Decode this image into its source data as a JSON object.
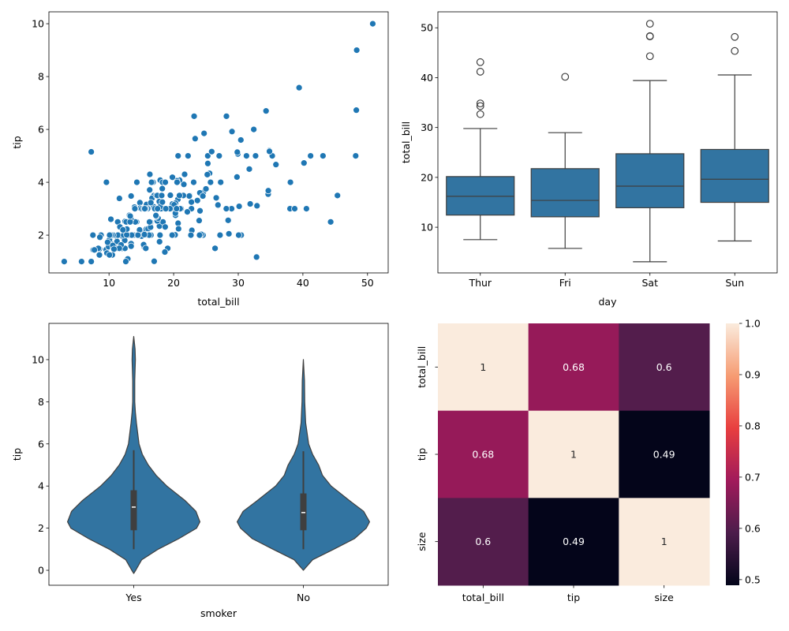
{
  "colors": {
    "scatter": "#1f77b4",
    "box_fill": "#3274a1",
    "line": "#3f3f3f",
    "rocket": [
      "#03051a",
      "#4c1d4b",
      "#a11a5b",
      "#e83f3f",
      "#f69c73",
      "#faebdd"
    ]
  },
  "chart_data": [
    {
      "type": "scatter",
      "xlabel": "total_bill",
      "ylabel": "tip",
      "xlim": [
        0.7,
        53.2
      ],
      "ylim": [
        0.57,
        10.45
      ],
      "xticks": [
        10,
        20,
        30,
        40,
        50
      ],
      "yticks": [
        2,
        4,
        6,
        8,
        10
      ],
      "points": [
        [
          16.99,
          1.01
        ],
        [
          10.34,
          1.66
        ],
        [
          21.01,
          3.5
        ],
        [
          23.68,
          3.31
        ],
        [
          24.59,
          3.61
        ],
        [
          25.29,
          4.71
        ],
        [
          8.77,
          2.0
        ],
        [
          26.88,
          3.12
        ],
        [
          15.04,
          1.96
        ],
        [
          14.78,
          3.23
        ],
        [
          10.27,
          1.71
        ],
        [
          35.26,
          5.0
        ],
        [
          15.42,
          1.57
        ],
        [
          18.43,
          3.0
        ],
        [
          14.83,
          3.02
        ],
        [
          21.58,
          3.92
        ],
        [
          10.33,
          1.67
        ],
        [
          16.29,
          3.71
        ],
        [
          16.97,
          3.5
        ],
        [
          20.65,
          3.35
        ],
        [
          17.92,
          4.08
        ],
        [
          20.29,
          2.75
        ],
        [
          15.77,
          2.23
        ],
        [
          39.42,
          7.58
        ],
        [
          19.82,
          3.18
        ],
        [
          17.81,
          2.34
        ],
        [
          13.37,
          2.0
        ],
        [
          12.69,
          2.0
        ],
        [
          21.7,
          4.3
        ],
        [
          19.65,
          3.0
        ],
        [
          9.55,
          1.45
        ],
        [
          18.35,
          2.5
        ],
        [
          15.06,
          3.0
        ],
        [
          20.69,
          2.45
        ],
        [
          17.78,
          3.27
        ],
        [
          24.06,
          3.6
        ],
        [
          16.31,
          2.0
        ],
        [
          16.93,
          3.07
        ],
        [
          18.69,
          2.31
        ],
        [
          31.27,
          5.0
        ],
        [
          16.04,
          2.24
        ],
        [
          17.46,
          2.54
        ],
        [
          13.94,
          3.06
        ],
        [
          9.68,
          1.32
        ],
        [
          30.4,
          5.6
        ],
        [
          18.29,
          3.0
        ],
        [
          22.23,
          5.0
        ],
        [
          32.4,
          6.0
        ],
        [
          28.55,
          2.05
        ],
        [
          18.04,
          3.0
        ],
        [
          12.54,
          2.5
        ],
        [
          10.29,
          2.6
        ],
        [
          34.81,
          5.2
        ],
        [
          9.94,
          1.56
        ],
        [
          25.56,
          4.34
        ],
        [
          19.49,
          3.51
        ],
        [
          38.01,
          3.0
        ],
        [
          26.41,
          1.5
        ],
        [
          11.24,
          1.76
        ],
        [
          48.27,
          6.73
        ],
        [
          20.29,
          3.21
        ],
        [
          13.81,
          2.0
        ],
        [
          11.02,
          1.98
        ],
        [
          18.29,
          3.76
        ],
        [
          17.59,
          2.64
        ],
        [
          20.08,
          3.15
        ],
        [
          16.45,
          2.47
        ],
        [
          3.07,
          1.0
        ],
        [
          20.23,
          2.01
        ],
        [
          15.01,
          2.09
        ],
        [
          12.02,
          1.97
        ],
        [
          17.07,
          3.0
        ],
        [
          26.86,
          3.14
        ],
        [
          25.28,
          5.0
        ],
        [
          14.73,
          2.2
        ],
        [
          10.51,
          1.25
        ],
        [
          17.92,
          3.08
        ],
        [
          27.2,
          4.0
        ],
        [
          22.76,
          3.0
        ],
        [
          17.29,
          2.71
        ],
        [
          19.44,
          3.0
        ],
        [
          16.66,
          3.4
        ],
        [
          10.07,
          1.83
        ],
        [
          32.68,
          5.0
        ],
        [
          15.98,
          2.03
        ],
        [
          34.83,
          5.17
        ],
        [
          13.03,
          2.0
        ],
        [
          18.28,
          4.0
        ],
        [
          24.71,
          5.85
        ],
        [
          21.16,
          3.0
        ],
        [
          28.97,
          3.0
        ],
        [
          22.49,
          3.5
        ],
        [
          5.75,
          1.0
        ],
        [
          16.32,
          4.3
        ],
        [
          22.75,
          3.25
        ],
        [
          40.17,
          4.73
        ],
        [
          27.28,
          4.0
        ],
        [
          12.03,
          1.5
        ],
        [
          21.01,
          3.0
        ],
        [
          12.46,
          1.5
        ],
        [
          11.35,
          2.5
        ],
        [
          15.38,
          3.0
        ],
        [
          44.3,
          2.5
        ],
        [
          22.42,
          3.48
        ],
        [
          20.92,
          4.08
        ],
        [
          15.36,
          1.64
        ],
        [
          20.49,
          4.06
        ],
        [
          25.21,
          4.29
        ],
        [
          18.24,
          3.76
        ],
        [
          14.31,
          4.0
        ],
        [
          14.0,
          3.0
        ],
        [
          7.25,
          1.0
        ],
        [
          38.07,
          4.0
        ],
        [
          23.95,
          2.55
        ],
        [
          25.71,
          4.0
        ],
        [
          17.31,
          3.5
        ],
        [
          29.93,
          5.07
        ],
        [
          10.65,
          1.5
        ],
        [
          12.43,
          1.8
        ],
        [
          24.08,
          2.92
        ],
        [
          11.69,
          2.31
        ],
        [
          13.42,
          1.68
        ],
        [
          14.26,
          2.5
        ],
        [
          15.95,
          2.0
        ],
        [
          12.48,
          2.52
        ],
        [
          29.8,
          4.2
        ],
        [
          8.52,
          1.48
        ],
        [
          14.52,
          2.0
        ],
        [
          11.38,
          2.0
        ],
        [
          22.82,
          2.18
        ],
        [
          19.08,
          1.5
        ],
        [
          20.27,
          2.83
        ],
        [
          11.17,
          1.5
        ],
        [
          12.26,
          2.0
        ],
        [
          18.26,
          3.25
        ],
        [
          8.51,
          1.25
        ],
        [
          10.33,
          2.0
        ],
        [
          14.15,
          2.0
        ],
        [
          16.0,
          2.0
        ],
        [
          13.16,
          2.75
        ],
        [
          17.47,
          3.5
        ],
        [
          34.3,
          6.7
        ],
        [
          41.19,
          5.0
        ],
        [
          27.05,
          5.0
        ],
        [
          16.43,
          2.3
        ],
        [
          8.35,
          1.5
        ],
        [
          18.64,
          1.36
        ],
        [
          11.87,
          1.63
        ],
        [
          9.78,
          1.73
        ],
        [
          7.51,
          2.0
        ],
        [
          14.07,
          2.5
        ],
        [
          13.13,
          2.0
        ],
        [
          17.26,
          2.74
        ],
        [
          24.55,
          2.0
        ],
        [
          19.77,
          2.0
        ],
        [
          29.85,
          5.14
        ],
        [
          48.17,
          5.0
        ],
        [
          25.0,
          3.75
        ],
        [
          13.39,
          2.61
        ],
        [
          16.49,
          2.0
        ],
        [
          21.5,
          3.5
        ],
        [
          12.66,
          2.5
        ],
        [
          16.21,
          2.0
        ],
        [
          13.81,
          2.0
        ],
        [
          17.51,
          3.0
        ],
        [
          24.52,
          3.48
        ],
        [
          20.76,
          2.24
        ],
        [
          31.71,
          4.5
        ],
        [
          10.59,
          1.61
        ],
        [
          10.63,
          2.0
        ],
        [
          50.81,
          10.0
        ],
        [
          15.81,
          3.16
        ],
        [
          7.25,
          5.15
        ],
        [
          31.85,
          3.18
        ],
        [
          16.82,
          4.0
        ],
        [
          32.9,
          3.11
        ],
        [
          17.89,
          2.0
        ],
        [
          14.48,
          2.0
        ],
        [
          9.6,
          4.0
        ],
        [
          34.63,
          3.55
        ],
        [
          34.65,
          3.68
        ],
        [
          23.33,
          5.65
        ],
        [
          45.35,
          3.5
        ],
        [
          23.17,
          6.5
        ],
        [
          40.55,
          3.0
        ],
        [
          20.69,
          5.0
        ],
        [
          20.9,
          3.5
        ],
        [
          30.46,
          2.0
        ],
        [
          18.15,
          3.5
        ],
        [
          23.1,
          4.0
        ],
        [
          15.69,
          1.5
        ],
        [
          19.81,
          4.19
        ],
        [
          28.44,
          2.56
        ],
        [
          15.48,
          2.02
        ],
        [
          16.58,
          4.0
        ],
        [
          7.56,
          1.44
        ],
        [
          10.34,
          2.0
        ],
        [
          43.11,
          5.0
        ],
        [
          13.0,
          2.0
        ],
        [
          13.51,
          2.0
        ],
        [
          18.71,
          4.0
        ],
        [
          12.74,
          2.01
        ],
        [
          16.4,
          2.5
        ],
        [
          20.53,
          4.0
        ],
        [
          16.47,
          3.23
        ],
        [
          26.59,
          3.41
        ],
        [
          38.73,
          3.0
        ],
        [
          24.27,
          2.03
        ],
        [
          12.76,
          2.23
        ],
        [
          30.06,
          2.0
        ],
        [
          25.89,
          5.16
        ],
        [
          48.33,
          9.0
        ],
        [
          13.27,
          2.5
        ],
        [
          28.17,
          6.5
        ],
        [
          12.9,
          1.1
        ],
        [
          28.15,
          3.0
        ],
        [
          11.59,
          1.5
        ],
        [
          7.74,
          1.44
        ],
        [
          30.14,
          3.09
        ],
        [
          12.16,
          2.2
        ],
        [
          13.42,
          3.48
        ],
        [
          8.58,
          1.92
        ],
        [
          15.98,
          3.0
        ],
        [
          13.42,
          1.58
        ],
        [
          16.27,
          2.5
        ],
        [
          10.09,
          2.0
        ],
        [
          20.45,
          3.0
        ],
        [
          13.28,
          2.72
        ],
        [
          22.12,
          2.88
        ],
        [
          24.01,
          2.0
        ],
        [
          15.69,
          3.0
        ],
        [
          11.61,
          3.39
        ],
        [
          10.77,
          1.47
        ],
        [
          15.53,
          3.0
        ],
        [
          10.07,
          1.25
        ],
        [
          12.6,
          1.0
        ],
        [
          32.83,
          1.17
        ],
        [
          35.83,
          4.67
        ],
        [
          29.03,
          5.92
        ],
        [
          27.18,
          2.0
        ],
        [
          22.67,
          2.0
        ],
        [
          17.82,
          1.75
        ],
        [
          18.78,
          3.0
        ]
      ]
    },
    {
      "type": "box",
      "xlabel": "day",
      "ylabel": "total_bill",
      "ylim": [
        0.84,
        53.2
      ],
      "yticks": [
        10,
        20,
        30,
        40,
        50
      ],
      "categories": [
        "Thur",
        "Fri",
        "Sat",
        "Sun"
      ],
      "boxes": [
        {
          "whislo": 7.51,
          "q1": 12.44,
          "median": 16.2,
          "q3": 20.16,
          "whishi": 29.8,
          "outliers": [
            32.68,
            34.3,
            34.83,
            41.19,
            43.11
          ]
        },
        {
          "whislo": 5.75,
          "q1": 12.09,
          "median": 15.38,
          "q3": 21.75,
          "whishi": 28.97,
          "outliers": [
            40.17
          ]
        },
        {
          "whislo": 3.07,
          "q1": 13.91,
          "median": 18.24,
          "q3": 24.74,
          "whishi": 39.42,
          "outliers": [
            44.3,
            48.27,
            48.33,
            50.81
          ]
        },
        {
          "whislo": 7.25,
          "q1": 14.99,
          "median": 19.63,
          "q3": 25.6,
          "whishi": 40.55,
          "outliers": [
            45.35,
            48.17
          ]
        }
      ]
    },
    {
      "type": "violin",
      "xlabel": "smoker",
      "ylabel": "tip",
      "ylim": [
        -0.71,
        11.72
      ],
      "yticks": [
        0,
        2,
        4,
        6,
        8,
        10
      ],
      "categories": [
        "Yes",
        "No"
      ],
      "violins": [
        {
          "density": [
            [
              -0.15,
              0
            ],
            [
              0,
              0.03
            ],
            [
              0.5,
              0.12
            ],
            [
              1,
              0.37
            ],
            [
              1.5,
              0.68
            ],
            [
              2,
              0.95
            ],
            [
              2.3,
              1.0
            ],
            [
              2.8,
              0.94
            ],
            [
              3.3,
              0.78
            ],
            [
              4,
              0.5
            ],
            [
              4.5,
              0.34
            ],
            [
              5,
              0.22
            ],
            [
              5.5,
              0.13
            ],
            [
              6,
              0.08
            ],
            [
              7,
              0.04
            ],
            [
              7.5,
              0.025
            ],
            [
              8,
              0.015
            ],
            [
              9,
              0.015
            ],
            [
              10,
              0.025
            ],
            [
              10.5,
              0.02
            ],
            [
              11.1,
              0
            ]
          ],
          "whislo": 1.0,
          "q1": 1.9,
          "median": 3.0,
          "q3": 3.8,
          "whishi": 5.7
        },
        {
          "density": [
            [
              0,
              0
            ],
            [
              0.5,
              0.14
            ],
            [
              1,
              0.46
            ],
            [
              1.5,
              0.77
            ],
            [
              2,
              0.95
            ],
            [
              2.3,
              1.0
            ],
            [
              2.8,
              0.91
            ],
            [
              3.3,
              0.7
            ],
            [
              4,
              0.42
            ],
            [
              4.5,
              0.29
            ],
            [
              5,
              0.23
            ],
            [
              5.5,
              0.14
            ],
            [
              6,
              0.08
            ],
            [
              7,
              0.035
            ],
            [
              8,
              0.02
            ],
            [
              9,
              0.017
            ],
            [
              10,
              0
            ]
          ],
          "whislo": 1.0,
          "q1": 1.9,
          "median": 2.74,
          "q3": 3.65,
          "whishi": 5.65
        }
      ]
    },
    {
      "type": "heatmap",
      "labels": [
        "total_bill",
        "tip",
        "size"
      ],
      "values": [
        [
          1,
          0.68,
          0.6
        ],
        [
          0.68,
          1,
          0.49
        ],
        [
          0.6,
          0.49,
          1
        ]
      ],
      "annotations": [
        [
          "1",
          "0.68",
          "0.6"
        ],
        [
          "0.68",
          "1",
          "0.49"
        ],
        [
          "0.6",
          "0.49",
          "1"
        ]
      ],
      "colorbar": {
        "range": [
          0.489,
          1.0
        ],
        "ticks": [
          "0.5",
          "0.6",
          "0.7",
          "0.8",
          "0.9",
          "1.0"
        ]
      }
    }
  ]
}
